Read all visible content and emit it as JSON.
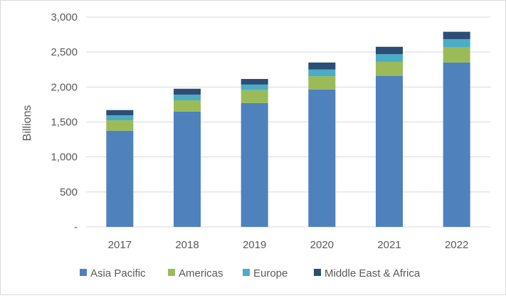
{
  "chart_data": {
    "type": "bar",
    "stacked": true,
    "title": "",
    "xlabel": "",
    "ylabel": "Billions",
    "ylim": [
      0,
      3000
    ],
    "yticks": [
      0,
      500,
      1000,
      1500,
      2000,
      2500,
      3000
    ],
    "ytick_labels": [
      "-",
      "500",
      "1,000",
      "1,500",
      "2,000",
      "2,500",
      "3,000"
    ],
    "grid": true,
    "legend_position": "bottom",
    "categories": [
      "2017",
      "2018",
      "2019",
      "2020",
      "2021",
      "2022"
    ],
    "series": [
      {
        "name": "Asia Pacific",
        "color": "#4f81bd",
        "values": [
          1375,
          1650,
          1770,
          1965,
          2160,
          2350
        ]
      },
      {
        "name": "Americas",
        "color": "#9bbb59",
        "values": [
          150,
          160,
          185,
          190,
          200,
          215
        ]
      },
      {
        "name": "Europe",
        "color": "#4bacc6",
        "values": [
          70,
          80,
          80,
          95,
          110,
          120
        ]
      },
      {
        "name": "Middle East & Africa",
        "color": "#2c4d75",
        "values": [
          75,
          85,
          80,
          100,
          105,
          105
        ]
      }
    ]
  }
}
